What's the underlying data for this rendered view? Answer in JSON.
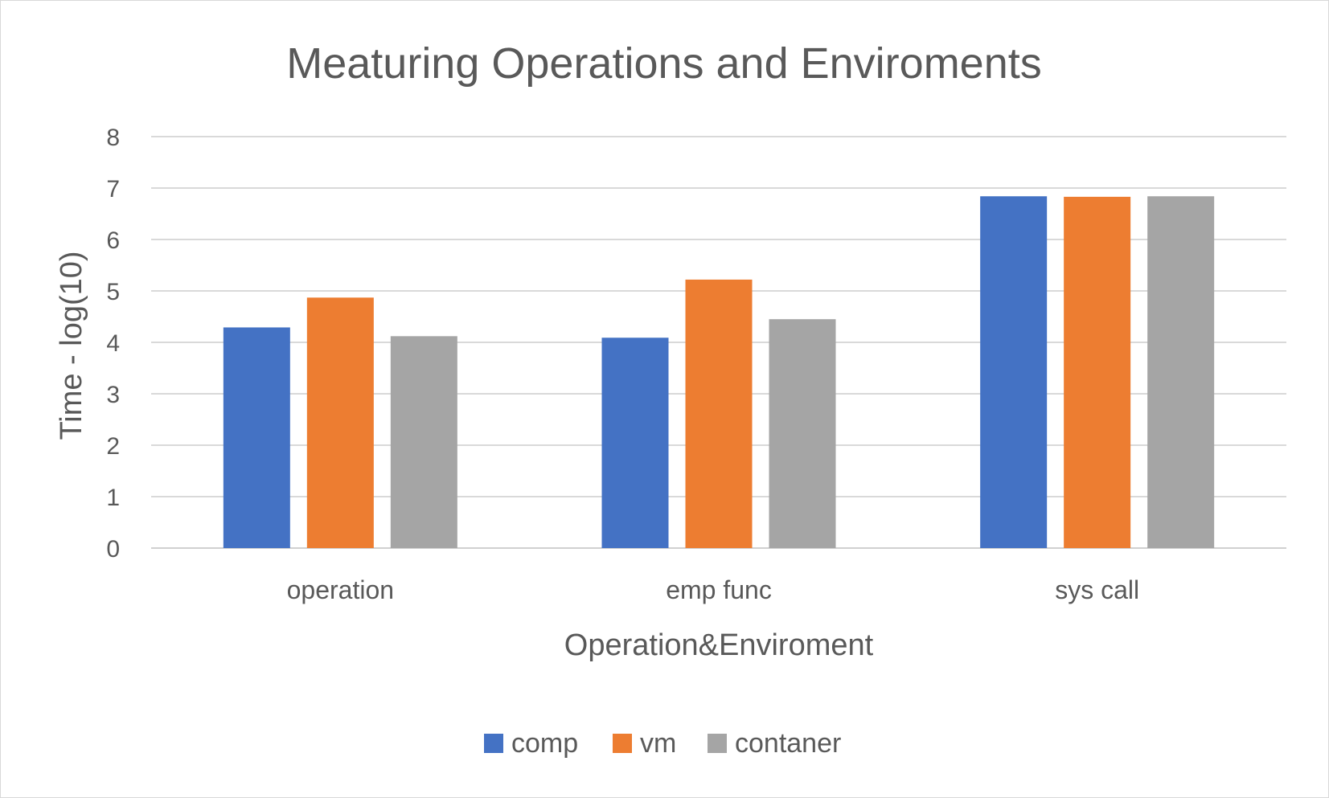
{
  "chart_data": {
    "type": "bar",
    "title": "Meaturing Operations and Enviroments",
    "xlabel": "Operation&Enviroment",
    "ylabel": "Time - log(10)",
    "ylim": [
      0,
      8
    ],
    "yticks": [
      "0",
      "1",
      "2",
      "3",
      "4",
      "5",
      "6",
      "7",
      "8"
    ],
    "grid": true,
    "legend_position": "bottom",
    "categories": [
      "operation",
      "emp func",
      "sys call"
    ],
    "series": [
      {
        "name": "comp",
        "color": "#4472c4",
        "values": [
          4.29,
          4.09,
          6.84
        ]
      },
      {
        "name": "vm",
        "color": "#ed7d31",
        "values": [
          4.87,
          5.22,
          6.83
        ]
      },
      {
        "name": "contaner",
        "color": "#a5a5a5",
        "values": [
          4.12,
          4.45,
          6.84
        ]
      }
    ]
  }
}
